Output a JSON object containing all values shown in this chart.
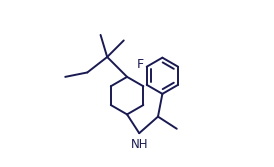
{
  "bg_color": "#ffffff",
  "line_color": "#1a1a52",
  "line_width": 1.4,
  "font_size": 8.5,
  "label_F": "F",
  "label_NH": "NH",
  "figsize": [
    2.74,
    1.67
  ],
  "dpi": 100,
  "xlim": [
    0,
    10.5
  ],
  "ylim": [
    0,
    7.5
  ]
}
